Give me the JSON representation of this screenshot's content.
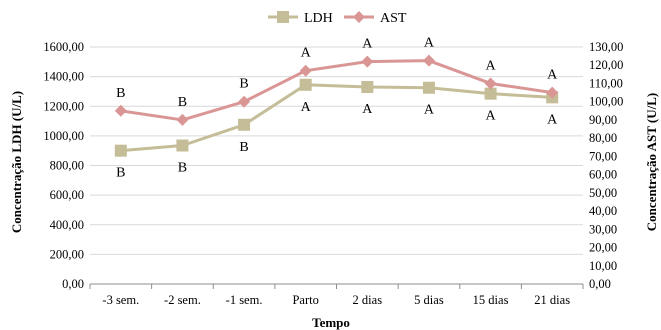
{
  "chart_data": {
    "type": "line",
    "xlabel": "Tempo",
    "ylabel_left": "Concentração LDH (U/L)",
    "ylabel_right": "Concentração AST (U/L)",
    "categories": [
      "-3 sem.",
      "-2 sem.",
      "-1 sem.",
      "Parto",
      "2 dias",
      "5 dias",
      "15 dias",
      "21 dias"
    ],
    "y_left": {
      "min": 0,
      "max": 1600,
      "step": 200,
      "ticks": [
        "0,00",
        "200,00",
        "400,00",
        "600,00",
        "800,00",
        "1000,00",
        "1200,00",
        "1400,00",
        "1600,00"
      ]
    },
    "y_right": {
      "min": 0,
      "max": 130,
      "step": 10,
      "ticks": [
        "0,00",
        "10,00",
        "20,00",
        "30,00",
        "40,00",
        "50,00",
        "60,00",
        "70,00",
        "80,00",
        "90,00",
        "100,00",
        "110,00",
        "120,00",
        "130,00"
      ]
    },
    "legend_position": "top-center",
    "grid": true,
    "series": [
      {
        "name": "LDH",
        "axis": "left",
        "color": "#c4bd97",
        "marker": "square",
        "values": [
          900,
          935,
          1075,
          1345,
          1330,
          1325,
          1285,
          1260
        ],
        "labels": [
          "B",
          "B",
          "B",
          "A",
          "A",
          "A",
          "A",
          "A"
        ]
      },
      {
        "name": "AST",
        "axis": "right",
        "color": "#d99694",
        "marker": "diamond",
        "values": [
          95,
          90,
          100,
          117,
          122,
          122.5,
          110,
          105
        ],
        "labels": [
          "B",
          "B",
          "B",
          "A",
          "A",
          "A",
          "A",
          "A"
        ]
      }
    ]
  }
}
